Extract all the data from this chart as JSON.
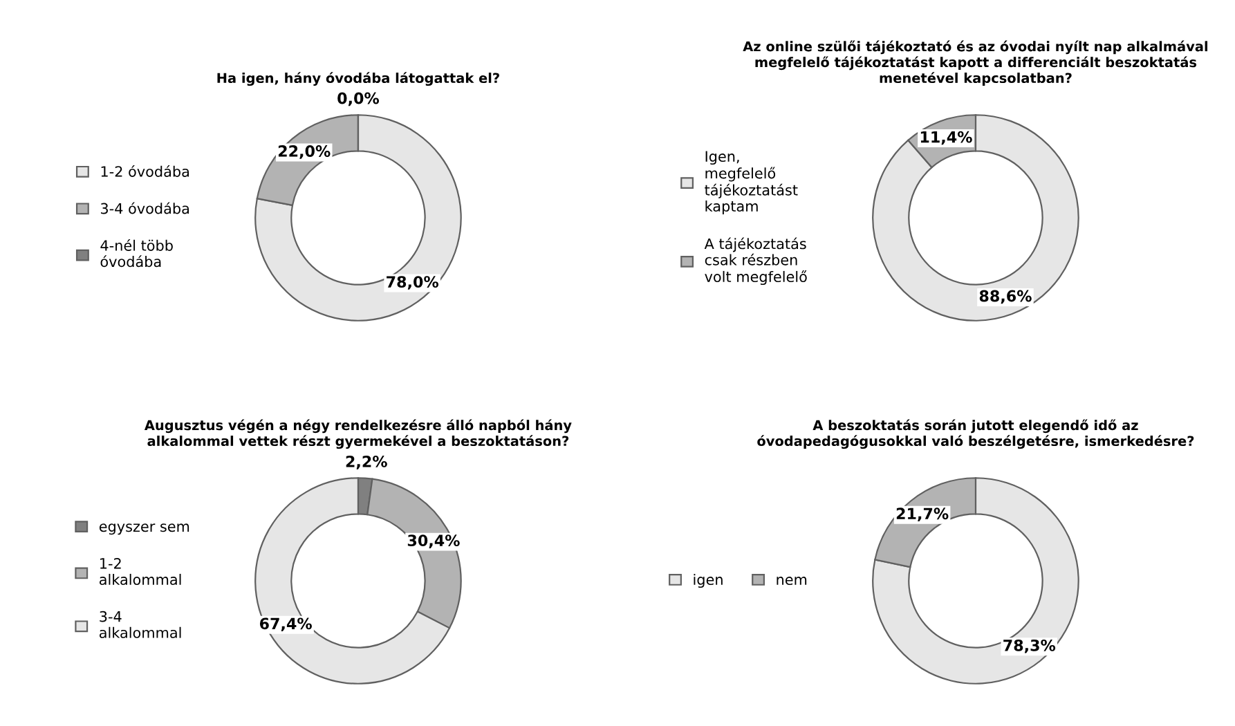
{
  "chart_data": [
    {
      "type": "donut",
      "title": "Ha igen, hány óvodába látogattak el?",
      "categories": [
        "1-2 óvodába",
        "3-4 óvodába",
        "4-nél több\nóvodába"
      ],
      "values": [
        78.0,
        22.0,
        0.0
      ],
      "colors": [
        "#e6e6e6",
        "#b3b3b3",
        "#808080"
      ],
      "value_labels": [
        "78,0%",
        "22,0%",
        "0,0%"
      ],
      "legend": "left"
    },
    {
      "type": "donut",
      "title": "Az online szülői tájékoztató és az óvodai nyílt nap alkalmával\nmegfelelő tájékoztatást kapott a differenciált beszoktatás\nmenetével kapcsolatban?",
      "categories": [
        "Igen,\nmegfelelő\ntájékoztatást\nkaptam",
        "A tájékoztatás\ncsak részben\nvolt megfelelő"
      ],
      "values": [
        88.6,
        11.4
      ],
      "colors": [
        "#e6e6e6",
        "#b3b3b3"
      ],
      "value_labels": [
        "88,6%",
        "11,4%"
      ],
      "legend": "left"
    },
    {
      "type": "donut",
      "title": "Augusztus végén a négy rendelkezésre álló napból hány\nalkalommal vettek részt gyermekével a beszoktatáson?",
      "categories": [
        "egyszer sem",
        "1-2\nalkalommal",
        "3-4\nalkalommal"
      ],
      "values": [
        2.2,
        30.4,
        67.4
      ],
      "colors": [
        "#808080",
        "#b3b3b3",
        "#e6e6e6"
      ],
      "value_labels": [
        "2,2%",
        "30,4%",
        "67,4%"
      ],
      "legend": "left"
    },
    {
      "type": "donut",
      "title": "A beszoktatás során jutott elegendő idő az\nóvodapedagógusokkal való beszélgetésre, ismerkedésre?",
      "categories": [
        "igen",
        "nem"
      ],
      "values": [
        78.3,
        21.7
      ],
      "colors": [
        "#e6e6e6",
        "#b3b3b3"
      ],
      "value_labels": [
        "78,3%",
        "21,7%"
      ],
      "legend": "left"
    }
  ]
}
